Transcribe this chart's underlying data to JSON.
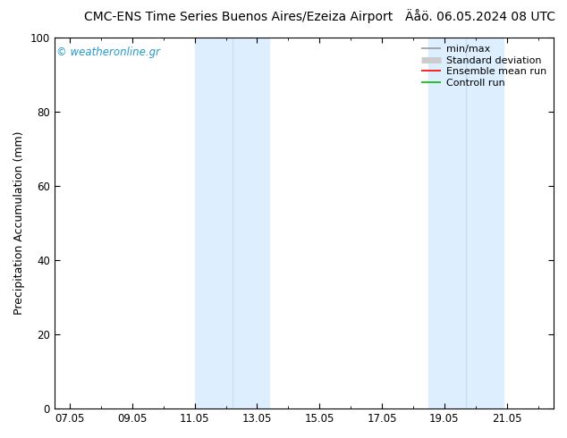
{
  "title_left": "CMC-ENS Time Series Buenos Aires/Ezeiza Airport",
  "title_right": "Äåö. 06.05.2024 08 UTC",
  "ylabel": "Precipitation Accumulation (mm)",
  "ylim": [
    0,
    100
  ],
  "yticks": [
    0,
    20,
    40,
    60,
    80,
    100
  ],
  "x_tick_labels": [
    "07.05",
    "09.05",
    "11.05",
    "13.05",
    "15.05",
    "17.05",
    "19.05",
    "21.05"
  ],
  "x_tick_positions": [
    0,
    2,
    4,
    6,
    8,
    10,
    12,
    14
  ],
  "xlim": [
    -0.5,
    15.5
  ],
  "shaded_bands": [
    {
      "xmin": 4.0,
      "xmax": 6.4,
      "color": "#ddeeff"
    },
    {
      "xmin": 11.5,
      "xmax": 13.9,
      "color": "#ddeeff"
    }
  ],
  "band_dividers": [
    5.2,
    12.7
  ],
  "watermark": "© weatheronline.gr",
  "watermark_color": "#2299cc",
  "legend_entries": [
    {
      "label": "min/max",
      "color": "#999999",
      "lw": 1.2
    },
    {
      "label": "Standard deviation",
      "color": "#cccccc",
      "lw": 5
    },
    {
      "label": "Ensemble mean run",
      "color": "#ff0000",
      "lw": 1.2
    },
    {
      "label": "Controll run",
      "color": "#00bb00",
      "lw": 1.2
    }
  ],
  "bg_color": "#ffffff",
  "plot_bg_color": "#ffffff",
  "title_fontsize": 10,
  "label_fontsize": 9,
  "tick_fontsize": 8.5,
  "legend_fontsize": 8
}
